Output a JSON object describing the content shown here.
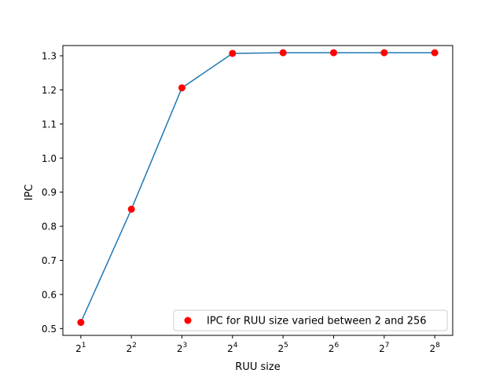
{
  "chart_data": {
    "type": "line",
    "title": "",
    "xlabel": "RUU size",
    "ylabel": "IPC",
    "x_scale": "log2",
    "x": [
      2,
      4,
      8,
      16,
      32,
      64,
      128,
      256
    ],
    "x_tick_labels": [
      {
        "base": "2",
        "exp": "1"
      },
      {
        "base": "2",
        "exp": "2"
      },
      {
        "base": "2",
        "exp": "3"
      },
      {
        "base": "2",
        "exp": "4"
      },
      {
        "base": "2",
        "exp": "5"
      },
      {
        "base": "2",
        "exp": "6"
      },
      {
        "base": "2",
        "exp": "7"
      },
      {
        "base": "2",
        "exp": "8"
      }
    ],
    "y_ticks": [
      "0.5",
      "0.6",
      "0.7",
      "0.8",
      "0.9",
      "1.0",
      "1.1",
      "1.2",
      "1.3"
    ],
    "ylim": [
      0.48,
      1.33
    ],
    "grid": false,
    "legend_position": "lower-right",
    "series": [
      {
        "name": "IPC for RUU size varied between 2 and 256",
        "values": [
          0.518,
          0.85,
          1.206,
          1.307,
          1.309,
          1.309,
          1.309,
          1.309
        ],
        "line_color": "#1f77b4",
        "marker_color": "#ff0000"
      }
    ]
  }
}
